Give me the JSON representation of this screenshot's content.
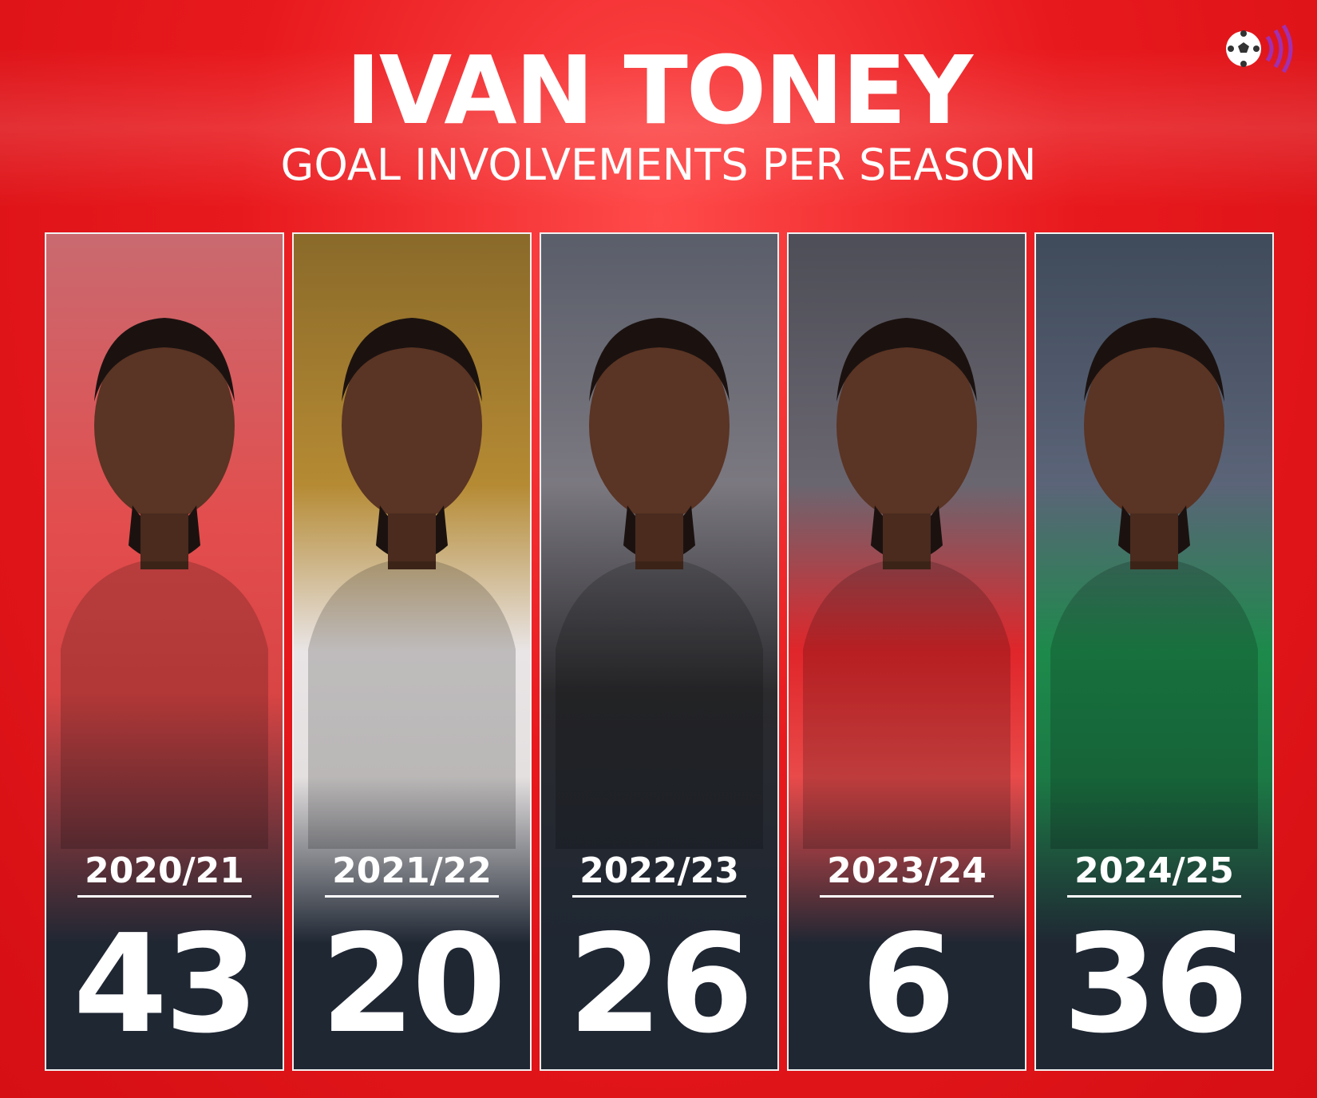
{
  "header": {
    "title": "IVAN TONEY",
    "subtitle": "GOAL INVOLVEMENTS PER SEASON"
  },
  "seasons": [
    {
      "season": "2020/21",
      "goal_involvements": 43
    },
    {
      "season": "2021/22",
      "goal_involvements": 20
    },
    {
      "season": "2022/23",
      "goal_involvements": 26
    },
    {
      "season": "2023/24",
      "goal_involvements": 6
    },
    {
      "season": "2024/25",
      "goal_involvements": 36
    }
  ]
}
